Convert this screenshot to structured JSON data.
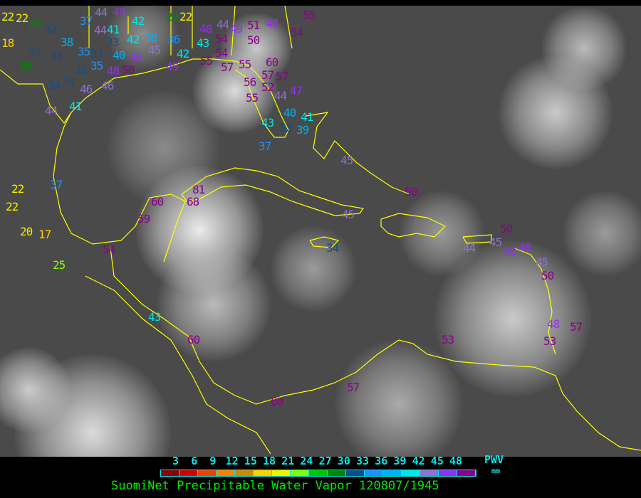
{
  "legend": {
    "ticks": [
      "3",
      "6",
      "9",
      "12",
      "15",
      "18",
      "21",
      "24",
      "27",
      "30",
      "33",
      "36",
      "39",
      "42",
      "45",
      "48"
    ],
    "colors": [
      "#8b0000",
      "#d00000",
      "#f04000",
      "#ff8000",
      "#d08800",
      "#ffd000",
      "#f0f000",
      "#80ff00",
      "#00c800",
      "#008800",
      "#104e8b",
      "#1e90ff",
      "#00b0f0",
      "#00e8e8",
      "#9070d0",
      "#9030f0",
      "#8b008b"
    ],
    "unit_label": "PWV",
    "unit": "mm"
  },
  "title": "SuomiNet Precipitable Water Vapor 120807/1945",
  "station_values": [
    22,
    22,
    29,
    34,
    38,
    35,
    33,
    34,
    33,
    30,
    32,
    35,
    34,
    34,
    46,
    46,
    48,
    50,
    44,
    41,
    37,
    44,
    33,
    41,
    40,
    42,
    42,
    38,
    36,
    42,
    49,
    44,
    45,
    48,
    49,
    29,
    22,
    48,
    44,
    49,
    54,
    43,
    54,
    55,
    57,
    51,
    50,
    48,
    54,
    55,
    60,
    55,
    56,
    57,
    57,
    52,
    44,
    55,
    47,
    40,
    41,
    43,
    33,
    39,
    37,
    45,
    50,
    45,
    34,
    44,
    45,
    50,
    49,
    48,
    45,
    50,
    48,
    57,
    53,
    53,
    57,
    60,
    60,
    43,
    54,
    25,
    20,
    17,
    22,
    22,
    37,
    60,
    68,
    81,
    59,
    18
  ]
}
